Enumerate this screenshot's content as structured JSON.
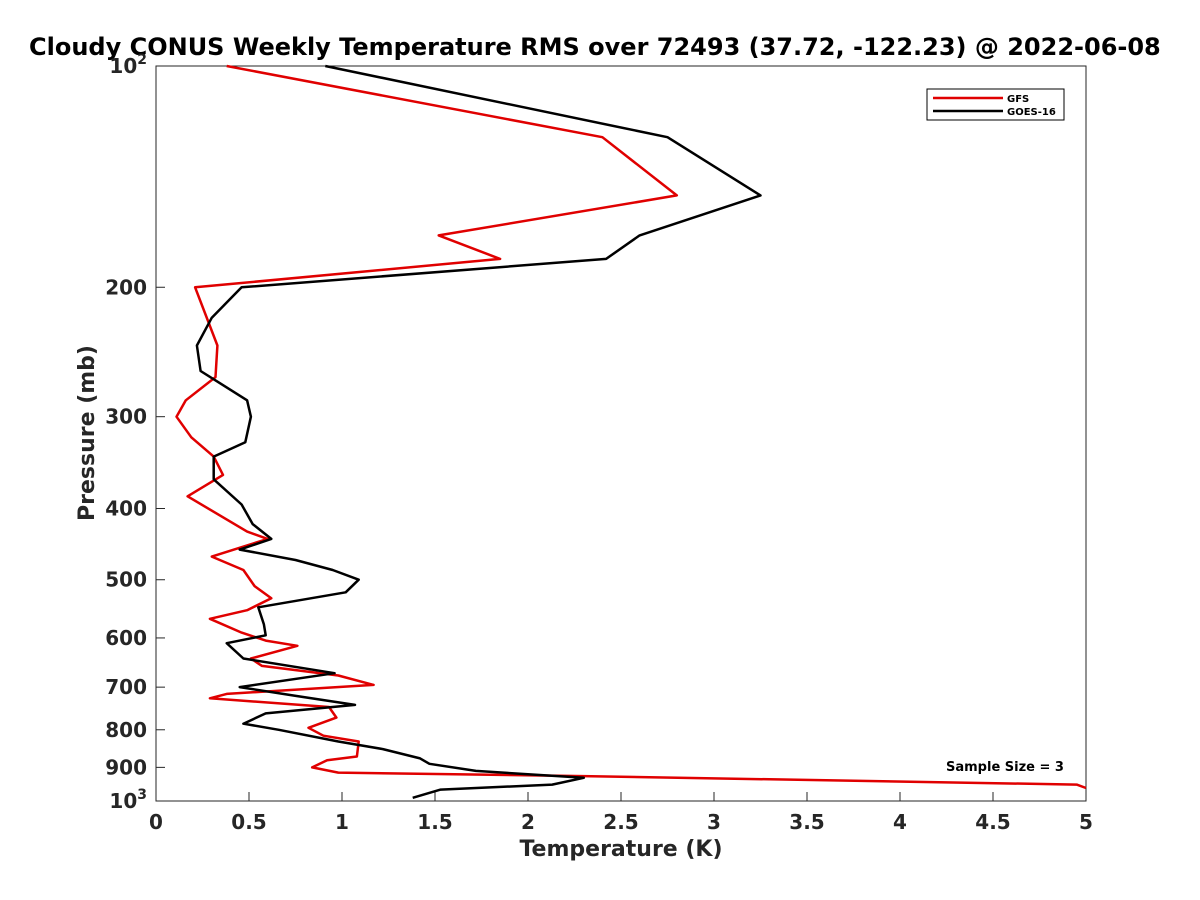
{
  "chart_data": {
    "type": "line",
    "title": "Cloudy CONUS Weekly Temperature RMS over 72493 (37.72, -122.23) @ 2022-06-08",
    "xlabel": "Temperature (K)",
    "ylabel": "Pressure (mb)",
    "xlim": [
      0,
      5
    ],
    "ylim": [
      100,
      1000
    ],
    "yscale": "log",
    "yreversed": true,
    "grid": false,
    "legend_position": "top-right",
    "x_ticks": [
      {
        "value": 0,
        "label": "0"
      },
      {
        "value": 0.5,
        "label": "0.5"
      },
      {
        "value": 1,
        "label": "1"
      },
      {
        "value": 1.5,
        "label": "1.5"
      },
      {
        "value": 2,
        "label": "2"
      },
      {
        "value": 2.5,
        "label": "2.5"
      },
      {
        "value": 3,
        "label": "3"
      },
      {
        "value": 3.5,
        "label": "3.5"
      },
      {
        "value": 4,
        "label": "4"
      },
      {
        "value": 4.5,
        "label": "4.5"
      },
      {
        "value": 5,
        "label": "5"
      }
    ],
    "y_ticks": [
      {
        "value": 100,
        "label": "10",
        "sup": "2"
      },
      {
        "value": 200,
        "label": "200"
      },
      {
        "value": 300,
        "label": "300"
      },
      {
        "value": 400,
        "label": "400"
      },
      {
        "value": 500,
        "label": "500"
      },
      {
        "value": 600,
        "label": "600"
      },
      {
        "value": 700,
        "label": "700"
      },
      {
        "value": 800,
        "label": "800"
      },
      {
        "value": 900,
        "label": "900"
      },
      {
        "value": 1000,
        "label": "10",
        "sup": "3"
      }
    ],
    "annotation": "Sample Size = 3",
    "series": [
      {
        "name": "GFS",
        "color": "#e00000",
        "points": [
          [
            0.38,
            100
          ],
          [
            2.4,
            125
          ],
          [
            2.8,
            150
          ],
          [
            1.52,
            170
          ],
          [
            1.85,
            183
          ],
          [
            0.21,
            200
          ],
          [
            0.33,
            240
          ],
          [
            0.32,
            265
          ],
          [
            0.16,
            285
          ],
          [
            0.11,
            300
          ],
          [
            0.19,
            320
          ],
          [
            0.31,
            340
          ],
          [
            0.36,
            360
          ],
          [
            0.17,
            385
          ],
          [
            0.49,
            430
          ],
          [
            0.6,
            440
          ],
          [
            0.3,
            465
          ],
          [
            0.47,
            485
          ],
          [
            0.53,
            510
          ],
          [
            0.62,
            530
          ],
          [
            0.49,
            550
          ],
          [
            0.29,
            565
          ],
          [
            0.46,
            590
          ],
          [
            0.59,
            605
          ],
          [
            0.76,
            615
          ],
          [
            0.51,
            640
          ],
          [
            0.57,
            655
          ],
          [
            0.98,
            675
          ],
          [
            1.17,
            695
          ],
          [
            0.38,
            715
          ],
          [
            0.29,
            725
          ],
          [
            0.93,
            745
          ],
          [
            0.97,
            770
          ],
          [
            0.82,
            795
          ],
          [
            0.9,
            815
          ],
          [
            1.09,
            830
          ],
          [
            1.08,
            870
          ],
          [
            0.92,
            880
          ],
          [
            0.84,
            900
          ],
          [
            0.98,
            915
          ],
          [
            2.3,
            925
          ],
          [
            4.95,
            950
          ],
          [
            5.0,
            960
          ]
        ]
      },
      {
        "name": "GOES-16",
        "color": "#000000",
        "points": [
          [
            0.91,
            100
          ],
          [
            2.75,
            125
          ],
          [
            3.25,
            150
          ],
          [
            2.6,
            170
          ],
          [
            2.42,
            183
          ],
          [
            0.46,
            200
          ],
          [
            0.3,
            220
          ],
          [
            0.22,
            240
          ],
          [
            0.24,
            260
          ],
          [
            0.49,
            285
          ],
          [
            0.51,
            300
          ],
          [
            0.48,
            325
          ],
          [
            0.31,
            340
          ],
          [
            0.31,
            365
          ],
          [
            0.46,
            395
          ],
          [
            0.52,
            420
          ],
          [
            0.62,
            440
          ],
          [
            0.45,
            455
          ],
          [
            0.75,
            470
          ],
          [
            0.95,
            485
          ],
          [
            1.09,
            500
          ],
          [
            1.02,
            520
          ],
          [
            0.55,
            545
          ],
          [
            0.58,
            575
          ],
          [
            0.59,
            595
          ],
          [
            0.38,
            610
          ],
          [
            0.47,
            640
          ],
          [
            0.96,
            670
          ],
          [
            0.45,
            700
          ],
          [
            0.76,
            720
          ],
          [
            1.07,
            740
          ],
          [
            0.59,
            760
          ],
          [
            0.47,
            785
          ],
          [
            0.66,
            800
          ],
          [
            0.98,
            830
          ],
          [
            1.22,
            850
          ],
          [
            1.42,
            875
          ],
          [
            1.47,
            890
          ],
          [
            1.72,
            910
          ],
          [
            2.3,
            930
          ],
          [
            2.13,
            950
          ],
          [
            1.53,
            965
          ],
          [
            1.38,
            990
          ]
        ]
      }
    ]
  }
}
